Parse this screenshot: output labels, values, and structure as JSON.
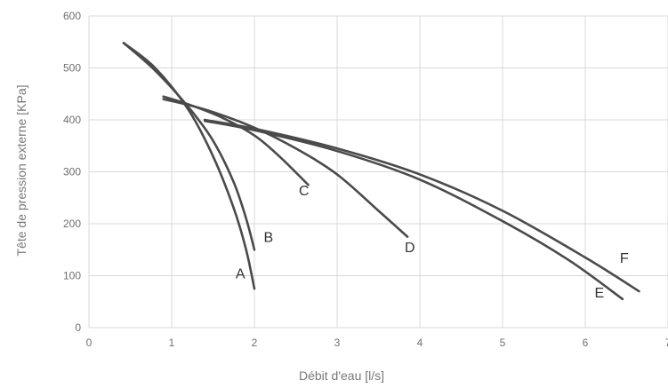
{
  "chart_data": {
    "type": "line",
    "title": "",
    "xlabel": "Débit d'eau [l/s]",
    "ylabel": "Tête de pression externe [KPa]",
    "xlim": [
      0,
      7
    ],
    "ylim": [
      0,
      600
    ],
    "x_ticks": [
      0,
      1,
      2,
      3,
      4,
      5,
      6,
      7
    ],
    "y_ticks": [
      0,
      100,
      200,
      300,
      400,
      500,
      600
    ],
    "x_tick_labels": [
      "0",
      "1",
      "2",
      "3",
      "4",
      "5",
      "6",
      "7"
    ],
    "y_tick_labels": [
      "0",
      "100",
      "200",
      "300",
      "400",
      "500",
      "600"
    ],
    "grid": true,
    "legend": "none",
    "line_color": "#4a4a4a",
    "series": [
      {
        "name": "A",
        "x": [
          0.42,
          0.8,
          1.2,
          1.5,
          1.75,
          1.9,
          2.0
        ],
        "y": [
          548,
          500,
          420,
          330,
          230,
          150,
          75
        ]
      },
      {
        "name": "B",
        "x": [
          0.42,
          0.8,
          1.2,
          1.5,
          1.75,
          1.9,
          2.0
        ],
        "y": [
          548,
          495,
          425,
          360,
          280,
          210,
          150
        ]
      },
      {
        "name": "C",
        "x": [
          0.9,
          1.2,
          1.6,
          2.0,
          2.3,
          2.65
        ],
        "y": [
          445,
          430,
          405,
          370,
          330,
          275
        ]
      },
      {
        "name": "D",
        "x": [
          0.9,
          1.4,
          2.0,
          2.5,
          3.0,
          3.5,
          3.85
        ],
        "y": [
          440,
          420,
          385,
          345,
          295,
          225,
          175
        ]
      },
      {
        "name": "E",
        "x": [
          1.4,
          2.0,
          3.0,
          4.0,
          5.0,
          5.8,
          6.45
        ],
        "y": [
          398,
          380,
          340,
          285,
          205,
          130,
          55
        ]
      },
      {
        "name": "F",
        "x": [
          1.4,
          2.0,
          3.0,
          4.0,
          5.0,
          6.0,
          6.65
        ],
        "y": [
          400,
          383,
          345,
          295,
          225,
          135,
          70
        ]
      }
    ],
    "annotations": [
      {
        "text": "A",
        "x": 1.83,
        "y": 95
      },
      {
        "text": "B",
        "x": 2.17,
        "y": 165
      },
      {
        "text": "C",
        "x": 2.6,
        "y": 255
      },
      {
        "text": "D",
        "x": 3.88,
        "y": 145
      },
      {
        "text": "E",
        "x": 6.17,
        "y": 58
      },
      {
        "text": "F",
        "x": 6.47,
        "y": 125
      }
    ]
  }
}
